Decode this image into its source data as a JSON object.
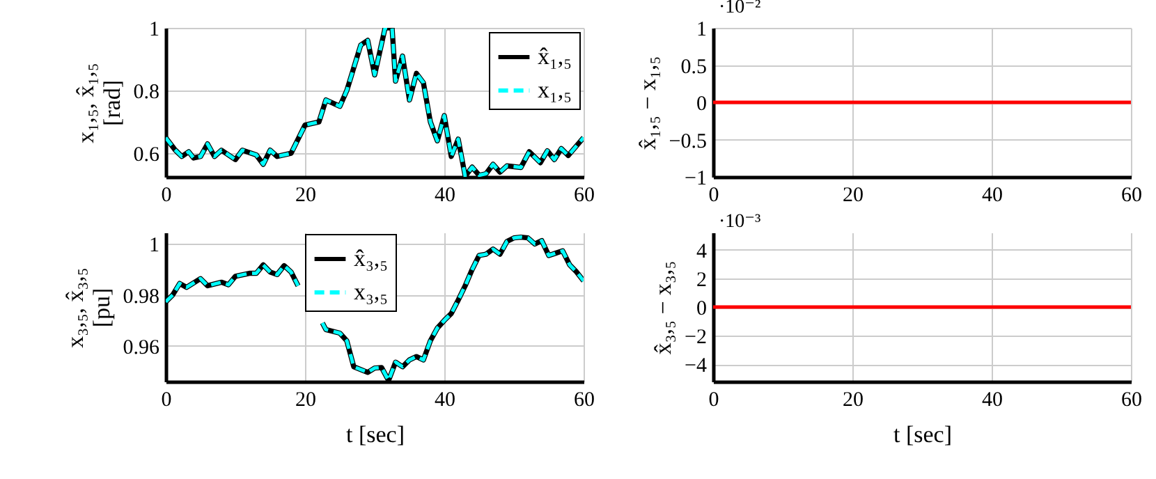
{
  "chart_data": [
    {
      "type": "line",
      "ylabel": "x₁,₅, x̂₁,₅\n[rad]",
      "x": [
        0,
        1.3,
        2.3,
        3.3,
        4,
        5,
        6,
        7,
        8,
        10,
        11,
        13,
        14,
        15,
        16,
        18,
        20,
        22,
        23,
        25,
        26,
        28,
        29,
        30,
        31.5,
        32.5,
        33,
        34,
        35,
        36,
        37,
        38,
        39,
        40,
        41,
        42,
        43,
        44,
        45,
        46,
        47,
        48,
        49,
        51,
        52.2,
        53.8,
        54.8,
        55.8,
        56.8,
        57.8,
        60
      ],
      "series": [
        {
          "name": "x̂₁,₅",
          "color": "#000000",
          "line_style": "solid",
          "values": [
            0.65,
            0.612,
            0.59,
            0.605,
            0.585,
            0.59,
            0.63,
            0.59,
            0.61,
            0.58,
            0.61,
            0.595,
            0.565,
            0.61,
            0.59,
            0.6,
            0.69,
            0.7,
            0.77,
            0.75,
            0.8,
            0.945,
            0.96,
            0.85,
            1.0,
            1.0,
            0.83,
            0.91,
            0.77,
            0.855,
            0.825,
            0.7,
            0.64,
            0.72,
            0.59,
            0.645,
            0.527,
            0.556,
            0.53,
            0.535,
            0.565,
            0.54,
            0.56,
            0.555,
            0.605,
            0.57,
            0.608,
            0.58,
            0.615,
            0.593,
            0.65
          ]
        },
        {
          "name": "x₁,₅",
          "color": "#00ffff",
          "line_style": "dashed",
          "values": [
            0.65,
            0.612,
            0.59,
            0.605,
            0.585,
            0.59,
            0.63,
            0.59,
            0.61,
            0.58,
            0.61,
            0.595,
            0.565,
            0.61,
            0.59,
            0.6,
            0.69,
            0.7,
            0.77,
            0.75,
            0.8,
            0.945,
            0.96,
            0.85,
            1.0,
            1.0,
            0.83,
            0.91,
            0.77,
            0.855,
            0.825,
            0.7,
            0.64,
            0.72,
            0.59,
            0.645,
            0.527,
            0.556,
            0.53,
            0.535,
            0.565,
            0.54,
            0.56,
            0.555,
            0.605,
            0.57,
            0.608,
            0.58,
            0.615,
            0.593,
            0.65
          ]
        }
      ],
      "xlim": [
        0,
        60
      ],
      "xticks": [
        0,
        20,
        40,
        60
      ],
      "ylim": [
        0.525,
        1.0
      ],
      "yticks": [
        0.6,
        0.8,
        1
      ],
      "grid": true,
      "legend": "top right"
    },
    {
      "type": "line",
      "ylabel": "x̂₁,₅ − x₁,₅",
      "annotations": [
        "·10⁻²"
      ],
      "x": [
        0,
        60
      ],
      "series": [
        {
          "color": "#ff0000",
          "line_style": "solid",
          "values": [
            0,
            0
          ]
        }
      ],
      "xlim": [
        0,
        60
      ],
      "xticks": [
        0,
        20,
        40,
        60
      ],
      "ylim": [
        -1,
        1
      ],
      "yticks": [
        {
          "value": -1,
          "label": "−1"
        },
        {
          "value": -0.5,
          "label": "−0.5"
        },
        0,
        0.5,
        1
      ],
      "grid": true
    },
    {
      "type": "line",
      "xlabel": "t [sec]",
      "ylabel": "x₃,₅, x̂₃,₅\n[pu]",
      "x": [
        0,
        1,
        2,
        3,
        5,
        6,
        8,
        9,
        10,
        12,
        13,
        14,
        15,
        16,
        17,
        18,
        19,
        20,
        22.5,
        23,
        25,
        26,
        27,
        29,
        30,
        31,
        32,
        33,
        34,
        35,
        36,
        37,
        38,
        39,
        40,
        41,
        42,
        43,
        44,
        45,
        46,
        47,
        48,
        49,
        50,
        51,
        52,
        53,
        54,
        55,
        56,
        57,
        58,
        59,
        60
      ],
      "series": [
        {
          "name": "x̂₃,₅",
          "color": "#000000",
          "line_style": "solid",
          "values": [
            0.9773,
            0.98,
            0.9845,
            0.983,
            0.9864,
            0.9836,
            0.985,
            0.984,
            0.9873,
            0.9885,
            0.9885,
            0.9918,
            0.989,
            0.988,
            0.9915,
            0.989,
            0.9836,
            null,
            0.969,
            0.9664,
            0.965,
            0.962,
            0.9518,
            0.9496,
            0.9513,
            0.9515,
            0.9464,
            0.9536,
            0.9518,
            0.9545,
            0.9558,
            0.9545,
            0.962,
            0.967,
            0.97,
            0.9727,
            0.978,
            0.9836,
            0.99,
            0.9955,
            0.996,
            0.998,
            0.996,
            1.001,
            1.0024,
            1.0027,
            1.0024,
            1.0,
            1.0013,
            0.9955,
            0.9964,
            0.9973,
            0.9918,
            0.989,
            0.9855
          ]
        },
        {
          "name": "x₃,₅",
          "color": "#00ffff",
          "line_style": "dashed",
          "values": [
            0.9773,
            0.98,
            0.9845,
            0.983,
            0.9864,
            0.9836,
            0.985,
            0.984,
            0.9873,
            0.9885,
            0.9885,
            0.9918,
            0.989,
            0.988,
            0.9915,
            0.989,
            0.9836,
            null,
            0.969,
            0.9664,
            0.965,
            0.962,
            0.9518,
            0.9496,
            0.9513,
            0.9515,
            0.9464,
            0.9536,
            0.9518,
            0.9545,
            0.9558,
            0.9545,
            0.962,
            0.967,
            0.97,
            0.9727,
            0.978,
            0.9836,
            0.99,
            0.9955,
            0.996,
            0.998,
            0.996,
            1.001,
            1.0024,
            1.0027,
            1.0024,
            1.0,
            1.0013,
            0.9955,
            0.9964,
            0.9973,
            0.9918,
            0.989,
            0.9855
          ]
        }
      ],
      "xlim": [
        0,
        60
      ],
      "xticks": [
        0,
        20,
        40,
        60
      ],
      "ylim": [
        0.946,
        1.0045
      ],
      "yticks": [
        0.96,
        0.98,
        1
      ],
      "grid": true,
      "legend": "top"
    },
    {
      "type": "line",
      "xlabel": "t [sec]",
      "ylabel": "x̂₃,₅ − x₃,₅",
      "annotations": [
        "·10⁻³"
      ],
      "x": [
        0,
        60
      ],
      "series": [
        {
          "color": "#ff0000",
          "line_style": "solid",
          "values": [
            0,
            0
          ]
        }
      ],
      "xlim": [
        0,
        60
      ],
      "xticks": [
        0,
        20,
        40,
        60
      ],
      "ylim": [
        -5.2,
        5.2
      ],
      "yticks": [
        {
          "value": -4,
          "label": "−4"
        },
        {
          "value": -2,
          "label": "−2"
        },
        0,
        2,
        4
      ],
      "grid": true
    }
  ]
}
